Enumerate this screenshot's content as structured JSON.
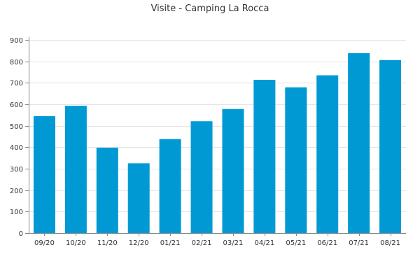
{
  "chart_data": {
    "type": "bar",
    "title": "Visite - Camping La Rocca",
    "categories": [
      "09/20",
      "10/20",
      "11/20",
      "12/20",
      "01/21",
      "02/21",
      "03/21",
      "04/21",
      "05/21",
      "06/21",
      "07/21",
      "08/21"
    ],
    "values": [
      545,
      593,
      398,
      325,
      438,
      521,
      578,
      714,
      679,
      735,
      838,
      806
    ],
    "ylim": [
      0,
      900
    ],
    "yticks": [
      0,
      100,
      200,
      300,
      400,
      500,
      600,
      700,
      800,
      900
    ],
    "grid": true,
    "bar_color": "#0099d4",
    "xlabel": "",
    "ylabel": ""
  }
}
